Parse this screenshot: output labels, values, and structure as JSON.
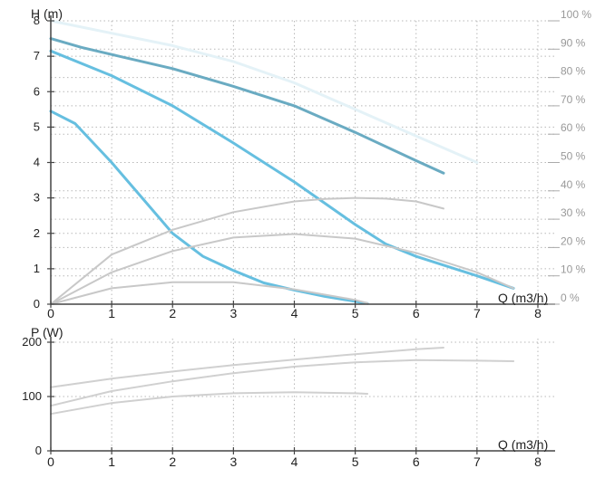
{
  "chart_data": [
    {
      "type": "line",
      "name": "head-curve",
      "ylabel": "H (m)",
      "xlabel": "Q (m3/h)",
      "xlim": [
        0,
        8
      ],
      "ylim": [
        0,
        8
      ],
      "x_ticks": [
        "0",
        "1",
        "2",
        "3",
        "4",
        "5",
        "6",
        "7",
        "8"
      ],
      "y_ticks": [
        "0",
        "1",
        "2",
        "3",
        "4",
        "5",
        "6",
        "7",
        "8"
      ],
      "y2_ticks": [
        "0 %",
        "10 %",
        "20 %",
        "30 %",
        "40 %",
        "50 %",
        "60 %",
        "70 %",
        "80 %",
        "90 %",
        "100 %"
      ],
      "y2lim": [
        0,
        100
      ],
      "grid": true,
      "series": [
        {
          "color": "#e4f2f7",
          "width": 3,
          "x": [
            0,
            1,
            2,
            3,
            4,
            5,
            6,
            7
          ],
          "y": [
            8,
            7.65,
            7.3,
            6.85,
            6.25,
            5.5,
            4.75,
            4.0
          ]
        },
        {
          "color": "#6aabc2",
          "width": 3,
          "x": [
            0,
            0.5,
            1,
            2,
            3,
            4,
            5,
            6,
            6.45
          ],
          "y": [
            7.5,
            7.25,
            7.05,
            6.65,
            6.15,
            5.6,
            4.85,
            4.05,
            3.7
          ]
        },
        {
          "color": "#66bfe0",
          "width": 3,
          "x": [
            0,
            1,
            2,
            3,
            4,
            4.5,
            5,
            5.5,
            6,
            7,
            7.6
          ],
          "y": [
            7.15,
            6.45,
            5.6,
            4.55,
            3.45,
            2.85,
            2.25,
            1.7,
            1.35,
            0.8,
            0.45
          ]
        },
        {
          "color": "#66bfe0",
          "width": 3,
          "x": [
            0,
            0.4,
            1,
            1.5,
            2,
            2.5,
            3,
            3.5,
            4,
            4.5,
            5,
            5.2
          ],
          "y": [
            5.45,
            5.1,
            4.0,
            3.0,
            2.0,
            1.35,
            0.95,
            0.6,
            0.4,
            0.22,
            0.08,
            0.02
          ]
        },
        {
          "color": "#c8c8c8",
          "width": 2,
          "x": [
            0,
            1,
            2,
            3,
            4,
            4.5,
            5,
            5.5,
            6,
            6.45
          ],
          "y": [
            0,
            1.4,
            2.1,
            2.6,
            2.9,
            2.97,
            3.0,
            2.98,
            2.9,
            2.7
          ]
        },
        {
          "color": "#c8c8c8",
          "width": 2,
          "x": [
            0,
            1,
            2,
            3,
            4,
            5,
            6,
            7,
            7.6
          ],
          "y": [
            0,
            0.9,
            1.5,
            1.88,
            1.98,
            1.85,
            1.45,
            0.9,
            0.45
          ]
        },
        {
          "color": "#c8c8c8",
          "width": 2,
          "x": [
            0,
            1,
            2,
            3,
            4,
            5,
            5.2
          ],
          "y": [
            0,
            0.45,
            0.62,
            0.62,
            0.42,
            0.12,
            0.03
          ]
        }
      ]
    },
    {
      "type": "line",
      "name": "power-curve",
      "ylabel": "P (W)",
      "xlabel": "Q (m3/h)",
      "xlim": [
        0,
        8
      ],
      "ylim": [
        0,
        200
      ],
      "x_ticks": [
        "0",
        "1",
        "2",
        "3",
        "4",
        "5",
        "6",
        "7",
        "8"
      ],
      "y_ticks": [
        "0",
        "100",
        "200"
      ],
      "grid": true,
      "series": [
        {
          "color": "#d0d0d0",
          "width": 2,
          "x": [
            0,
            1,
            2,
            3,
            4,
            5,
            6,
            6.45
          ],
          "y": [
            117,
            133,
            146,
            158,
            168,
            178,
            187,
            190
          ]
        },
        {
          "color": "#d0d0d0",
          "width": 2,
          "x": [
            0,
            1,
            2,
            3,
            4,
            5,
            6,
            7,
            7.6
          ],
          "y": [
            83,
            110,
            128,
            143,
            155,
            163,
            167,
            166,
            165
          ]
        },
        {
          "color": "#d0d0d0",
          "width": 2,
          "x": [
            0,
            1,
            2,
            3,
            4,
            5,
            5.2
          ],
          "y": [
            68,
            88,
            100,
            106,
            108,
            106,
            105
          ]
        }
      ]
    }
  ]
}
